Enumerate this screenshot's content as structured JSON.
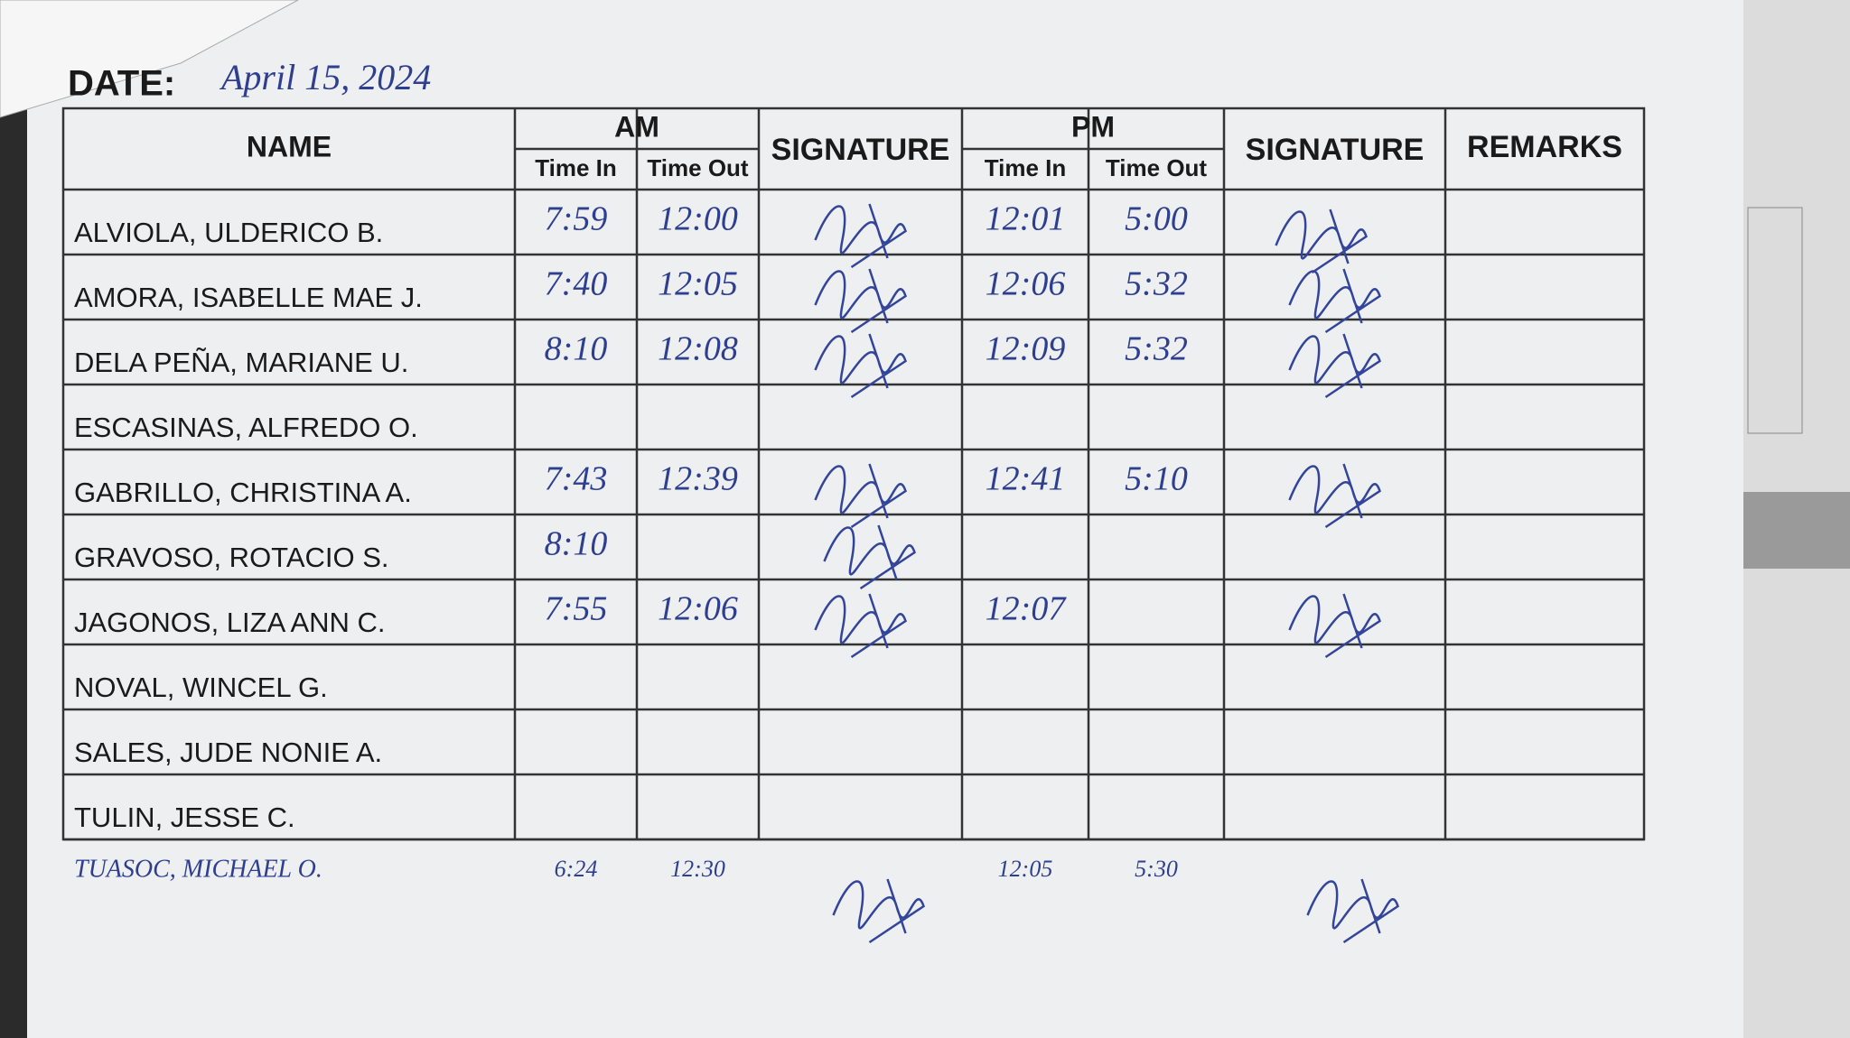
{
  "header": {
    "date_label": "DATE:",
    "date": "April 15, 2024"
  },
  "table": {
    "groups": {
      "am": "AM",
      "pm": "PM"
    },
    "headers": {
      "name": "NAME",
      "time_in": "Time In",
      "time_out": "Time Out",
      "signature": "SIGNATURE",
      "remarks": "REMARKS"
    },
    "rows": [
      [
        "ALVIOLA, ULDERICO B.",
        "7:59",
        "12:00",
        "12:01",
        "5:00"
      ],
      [
        "AMORA, ISABELLE MAE J.",
        "7:40",
        "12:05",
        "12:06",
        "5:32"
      ],
      [
        "DELA PEÑA, MARIANE U.",
        "8:10",
        "12:08",
        "12:09",
        "5:32"
      ],
      [
        "ESCASINAS, ALFREDO O.",
        null,
        null,
        null,
        null
      ],
      [
        "GABRILLO, CHRISTINA A.",
        "7:43",
        "12:39",
        "12:41",
        "5:10"
      ],
      [
        "GRAVOSO, ROTACIO S.",
        "8:10",
        null,
        null,
        null
      ],
      [
        "JAGONOS, LIZA ANN C.",
        "7:55",
        "12:06",
        "12:07",
        null
      ],
      [
        "NOVAL, WINCEL G.",
        null,
        null,
        null,
        null
      ],
      [
        "SALES, JUDE NONIE A.",
        null,
        null,
        null,
        null
      ],
      [
        "TULIN, JESSE C.",
        null,
        null,
        null,
        null
      ]
    ],
    "handwritten_row": [
      "TUASOC, MICHAEL O.",
      "6:24",
      "12:30",
      "12:05",
      "5:30"
    ]
  }
}
